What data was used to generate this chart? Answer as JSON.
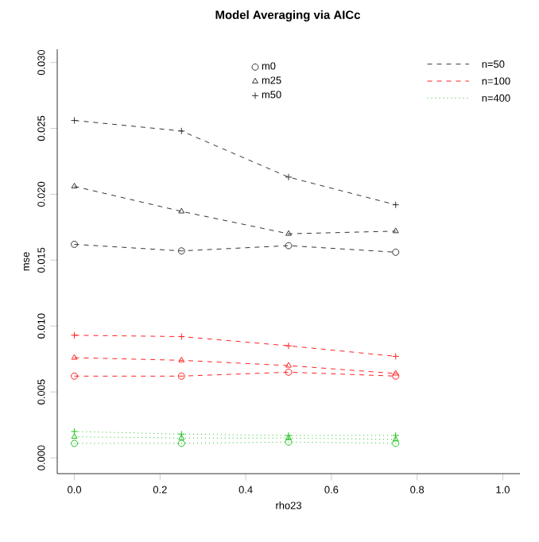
{
  "chart_data": {
    "type": "line",
    "title": "Model Averaging via AICc",
    "xlabel": "rho23",
    "ylabel": "mse",
    "x": [
      0,
      0.25,
      0.5,
      0.75
    ],
    "xlim": [
      -0.04,
      1.04
    ],
    "ylim": [
      -0.0012,
      0.031
    ],
    "xticks": [
      {
        "value": 0,
        "label": "0.0"
      },
      {
        "value": 0.2,
        "label": "0.2"
      },
      {
        "value": 0.4,
        "label": "0.4"
      },
      {
        "value": 0.6,
        "label": "0.6"
      },
      {
        "value": 0.8,
        "label": "0.8"
      },
      {
        "value": 1,
        "label": "1.0"
      }
    ],
    "yticks": [
      {
        "value": 0,
        "label": "0.000"
      },
      {
        "value": 0.005,
        "label": "0.005"
      },
      {
        "value": 0.01,
        "label": "0.010"
      },
      {
        "value": 0.015,
        "label": "0.015"
      },
      {
        "value": 0.02,
        "label": "0.020"
      },
      {
        "value": 0.025,
        "label": "0.025"
      },
      {
        "value": 0.03,
        "label": "0.030"
      }
    ],
    "series": [
      {
        "name": "m0",
        "color": "#333333",
        "marker": "circle",
        "line_style": "dashed",
        "values": [
          0.0162,
          0.0157,
          0.0161,
          0.0156
        ]
      },
      {
        "name": "m25",
        "color": "#333333",
        "marker": "triangle",
        "line_style": "dashed",
        "values": [
          0.0206,
          0.0187,
          0.017,
          0.0172
        ]
      },
      {
        "name": "m50",
        "color": "#333333",
        "marker": "cross",
        "line_style": "dashed",
        "values": [
          0.0256,
          0.0248,
          0.0213,
          0.0192
        ]
      },
      {
        "color": "#ff2020",
        "marker": "circle",
        "line_style": "dashed",
        "values": [
          0.0062,
          0.0062,
          0.0065,
          0.0062
        ]
      },
      {
        "color": "#ff2020",
        "marker": "triangle",
        "line_style": "dashed",
        "values": [
          0.0076,
          0.0074,
          0.007,
          0.0064
        ]
      },
      {
        "color": "#ff2020",
        "marker": "cross",
        "line_style": "dashed",
        "values": [
          0.0093,
          0.0092,
          0.0085,
          0.0077
        ]
      },
      {
        "color": "#20c020",
        "marker": "circle",
        "line_style": "dotted",
        "values": [
          0.0011,
          0.0011,
          0.0012,
          0.0011
        ]
      },
      {
        "color": "#20c020",
        "marker": "triangle",
        "line_style": "dotted",
        "values": [
          0.0016,
          0.0015,
          0.0015,
          0.0014
        ]
      },
      {
        "color": "#20c020",
        "marker": "cross",
        "line_style": "dotted",
        "values": [
          0.002,
          0.0018,
          0.0017,
          0.0017
        ]
      }
    ],
    "legend": "top",
    "annotations": [
      "n=50",
      "n=100",
      "n=400"
    ]
  }
}
